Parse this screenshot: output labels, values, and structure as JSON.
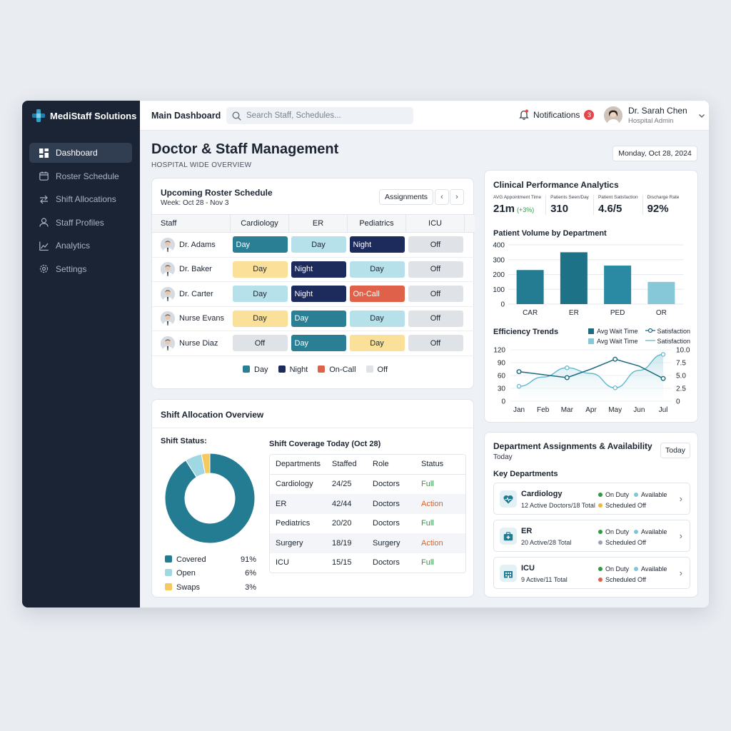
{
  "app": {
    "brand": "MediStaff Solutions"
  },
  "sidebar": {
    "items": [
      {
        "label": "Dashboard",
        "icon": "dashboard-icon",
        "active": true
      },
      {
        "label": "Roster Schedule",
        "icon": "calendar-icon"
      },
      {
        "label": "Shift Allocations",
        "icon": "swap-icon"
      },
      {
        "label": "Staff Profiles",
        "icon": "user-icon"
      },
      {
        "label": "Analytics",
        "icon": "chart-icon"
      },
      {
        "label": "Settings",
        "icon": "gear-icon"
      }
    ]
  },
  "topbar": {
    "title": "Main Dashboard",
    "search_placeholder": "Search Staff, Schedules...",
    "notifications_label": "Notifications",
    "notifications_count": "3",
    "user_name": "Dr. Sarah Chen",
    "user_role": "Hospital Admin"
  },
  "page": {
    "title": "Doctor & Staff Management",
    "subtitle": "HOSPITAL WIDE OVERVIEW",
    "date": "Monday, Oct 28, 2024"
  },
  "roster": {
    "title": "Upcoming Roster Schedule",
    "week": "Week: Oct 28 - Nov 3",
    "assignments_label": "Assignments",
    "columns": [
      "Staff",
      "Cardiology",
      "ER",
      "Pediatrics",
      "ICU"
    ],
    "rows": [
      {
        "name": "Dr. Adams",
        "shifts": [
          "Day",
          "Day",
          "Night",
          "Off"
        ],
        "types": [
          "day-dark",
          "day-light",
          "night",
          "off"
        ]
      },
      {
        "name": "Dr. Baker",
        "shifts": [
          "Day",
          "Night",
          "Day",
          "Off"
        ],
        "types": [
          "day-yellow",
          "night",
          "day-light",
          "off"
        ]
      },
      {
        "name": "Dr. Carter",
        "shifts": [
          "Day",
          "Night",
          "On-Call",
          "Off"
        ],
        "types": [
          "day-light",
          "night",
          "oncall",
          "off"
        ]
      },
      {
        "name": "Nurse Evans",
        "shifts": [
          "Day",
          "Day",
          "Day",
          "Off"
        ],
        "types": [
          "day-yellow",
          "day-dark",
          "day-light",
          "off"
        ]
      },
      {
        "name": "Nurse Diaz",
        "shifts": [
          "Off",
          "Day",
          "Day",
          "Off"
        ],
        "types": [
          "off",
          "day-dark",
          "day-yellow",
          "off"
        ]
      }
    ],
    "legend": [
      {
        "label": "Day",
        "color": "#2a7f95"
      },
      {
        "label": "Night",
        "color": "#1d2b5c"
      },
      {
        "label": "On-Call",
        "color": "#e0614a"
      },
      {
        "label": "Off",
        "color": "#dfe3e7"
      }
    ]
  },
  "alloc": {
    "title": "Shift Allocation Overview",
    "status_title": "Shift Status:",
    "donut": [
      {
        "label": "Covered",
        "pct": "91%",
        "value": 91,
        "color": "#237c92"
      },
      {
        "label": "Open",
        "pct": "6%",
        "value": 6,
        "color": "#9fd7e2"
      },
      {
        "label": "Swaps",
        "pct": "3%",
        "value": 3,
        "color": "#f5c95e"
      }
    ],
    "coverage_title": "Shift Coverage Today (Oct 28)",
    "coverage_cols": [
      "Departments",
      "Staffed",
      "Role",
      "Status"
    ],
    "coverage_rows": [
      {
        "dept": "Cardiology",
        "staffed": "24/25",
        "role": "Doctors",
        "status": "Full",
        "kind": "full"
      },
      {
        "dept": "ER",
        "staffed": "42/44",
        "role": "Doctors",
        "status": "Action",
        "kind": "action"
      },
      {
        "dept": "Pediatrics",
        "staffed": "20/20",
        "role": "Doctors",
        "status": "Full",
        "kind": "full"
      },
      {
        "dept": "Surgery",
        "staffed": "18/19",
        "role": "Surgery",
        "status": "Action",
        "kind": "action"
      },
      {
        "dept": "ICU",
        "staffed": "15/15",
        "role": "Doctors",
        "status": "Full",
        "kind": "full"
      }
    ]
  },
  "clinical": {
    "title": "Clinical Performance Analytics",
    "kpis": [
      {
        "label": "AVG Appointment Time",
        "value": "21m",
        "delta": "(+3%)"
      },
      {
        "label": "Patients Seen/Day",
        "value": "310"
      },
      {
        "label": "Patient Satisfaction",
        "value": "4.6/5"
      },
      {
        "label": "Discharge Rate",
        "value": "92%"
      }
    ],
    "volume_title": "Patient Volume by Department",
    "efficiency_title": "Efficiency Trends",
    "efficiency_legend": [
      "Avg Wait Time",
      "Satisfaction",
      "Avg Wait Time",
      "Satisfaction"
    ]
  },
  "chart_data": [
    {
      "type": "bar",
      "title": "Patient Volume by Department",
      "categories": [
        "CAR",
        "ER",
        "PED",
        "OR"
      ],
      "values": [
        230,
        350,
        260,
        150
      ],
      "colors": [
        "#237c92",
        "#1e7288",
        "#2a8aa3",
        "#86c8d8"
      ],
      "yticks": [
        0,
        100,
        200,
        300,
        400
      ],
      "ylim": [
        0,
        400
      ]
    },
    {
      "type": "line",
      "title": "Efficiency Trends",
      "x": [
        "Jan",
        "Feb",
        "Mar",
        "Apr",
        "May",
        "Jun",
        "Jul"
      ],
      "series": [
        {
          "name": "Avg Wait Time",
          "axis": "left",
          "values": [
            69,
            62,
            55,
            75,
            98,
            82,
            53
          ],
          "color": "#1e6b80"
        },
        {
          "name": "Satisfaction",
          "axis": "right",
          "values": [
            2.9,
            4.7,
            6.5,
            5.4,
            2.6,
            6.0,
            9.1
          ],
          "color": "#5db8cc"
        }
      ],
      "yticks_left": [
        0,
        30,
        60,
        90,
        120
      ],
      "yticks_right": [
        "0",
        "2.5",
        "5.0",
        "7.5",
        "10.0"
      ],
      "ylim_left": [
        0,
        120
      ],
      "ylim_right": [
        0,
        10
      ]
    }
  ],
  "depts": {
    "title": "Department Assignments & Availability",
    "subtitle": "Today",
    "today_label": "Today",
    "key_title": "Key Departments",
    "items": [
      {
        "name": "Cardiology",
        "meta": "12 Active Doctors/18 Total",
        "on_duty": "On Duty",
        "available": "Available",
        "scheduled": "Scheduled Off",
        "icon": "heart-icon"
      },
      {
        "name": "ER",
        "meta": "20 Active/28 Total",
        "on_duty": "On Duty",
        "available": "Available",
        "scheduled": "Scheduled Off",
        "icon": "medkit-icon"
      },
      {
        "name": "ICU",
        "meta": "9 Active/11 Total",
        "on_duty": "On Duty",
        "available": "Available",
        "scheduled": "Scheduled Off",
        "icon": "hospital-icon"
      }
    ]
  }
}
